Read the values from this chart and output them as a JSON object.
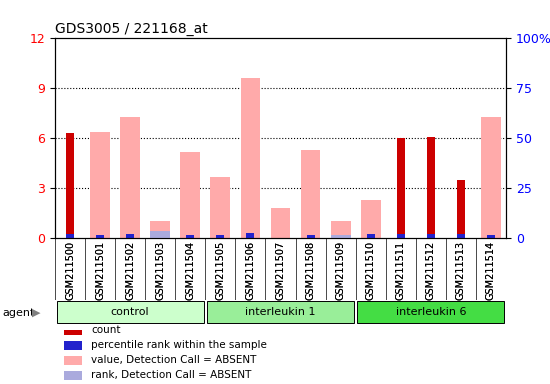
{
  "title": "GDS3005 / 221168_at",
  "samples": [
    "GSM211500",
    "GSM211501",
    "GSM211502",
    "GSM211503",
    "GSM211504",
    "GSM211505",
    "GSM211506",
    "GSM211507",
    "GSM211508",
    "GSM211509",
    "GSM211510",
    "GSM211511",
    "GSM211512",
    "GSM211513",
    "GSM211514"
  ],
  "count_values": [
    6.3,
    0,
    0,
    0,
    0,
    0,
    0,
    0,
    0,
    0,
    0,
    6.0,
    6.1,
    3.5,
    0
  ],
  "percentile_values": [
    1.8,
    1.7,
    2.0,
    0,
    1.5,
    1.7,
    2.5,
    0,
    1.7,
    0,
    1.8,
    1.8,
    1.8,
    1.8,
    1.7
  ],
  "absent_value_values": [
    0,
    6.4,
    7.3,
    1.0,
    5.2,
    3.7,
    9.6,
    1.8,
    5.3,
    1.0,
    2.3,
    0,
    0,
    0,
    7.3
  ],
  "absent_rank_values": [
    0,
    0,
    0,
    0.4,
    0,
    0,
    0,
    0,
    0,
    0.2,
    0,
    0,
    0,
    0,
    0
  ],
  "groups": [
    {
      "label": "control",
      "start": 0,
      "end": 5,
      "color": "#ccffcc"
    },
    {
      "label": "interleukin 1",
      "start": 5,
      "end": 10,
      "color": "#99ee99"
    },
    {
      "label": "interleukin 6",
      "start": 10,
      "end": 15,
      "color": "#44dd44"
    }
  ],
  "ylim_left": [
    0,
    12
  ],
  "ylim_right": [
    0,
    100
  ],
  "yticks_left": [
    0,
    3,
    6,
    9,
    12
  ],
  "yticks_right": [
    0,
    25,
    50,
    75,
    100
  ],
  "bar_width": 0.3,
  "count_color": "#cc0000",
  "percentile_color": "#2222cc",
  "absent_value_color": "#ffaaaa",
  "absent_rank_color": "#aaaadd",
  "bg_color": "#f0f0f0",
  "plot_bg": "#ffffff"
}
